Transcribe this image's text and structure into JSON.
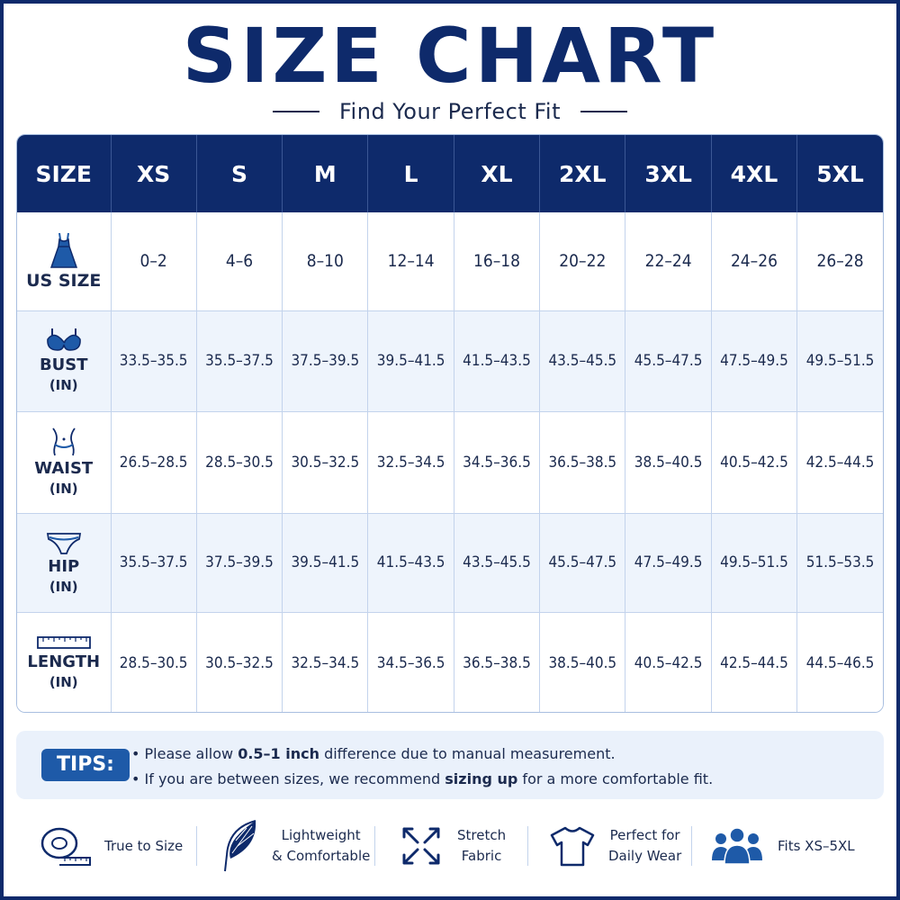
{
  "header": {
    "title": "SIZE CHART",
    "subtitle": "Find Your Perfect Fit"
  },
  "colors": {
    "navy": "#0e2a6b",
    "accent_blue": "#1e5aa8",
    "row_tint": "#eef4fc"
  },
  "table": {
    "corner_label": "SIZE",
    "sizes": [
      "XS",
      "S",
      "M",
      "L",
      "XL",
      "2XL",
      "3XL",
      "4XL",
      "5XL"
    ],
    "rows": [
      {
        "icon": "dress-icon",
        "label": "US SIZE",
        "unit": "",
        "values": [
          "0–2",
          "4–6",
          "8–10",
          "12–14",
          "16–18",
          "20–22",
          "22–24",
          "24–26",
          "26–28"
        ]
      },
      {
        "icon": "bra-icon",
        "label": "BUST",
        "unit": "(IN)",
        "values": [
          "33.5–35.5",
          "35.5–37.5",
          "37.5–39.5",
          "39.5–41.5",
          "41.5–43.5",
          "43.5–45.5",
          "45.5–47.5",
          "47.5–49.5",
          "49.5–51.5"
        ]
      },
      {
        "icon": "waist-icon",
        "label": "WAIST",
        "unit": "(IN)",
        "values": [
          "26.5–28.5",
          "28.5–30.5",
          "30.5–32.5",
          "32.5–34.5",
          "34.5–36.5",
          "36.5–38.5",
          "38.5–40.5",
          "40.5–42.5",
          "42.5–44.5"
        ]
      },
      {
        "icon": "hip-icon",
        "label": "HIP",
        "unit": "(IN)",
        "values": [
          "35.5–37.5",
          "37.5–39.5",
          "39.5–41.5",
          "41.5–43.5",
          "43.5–45.5",
          "45.5–47.5",
          "47.5–49.5",
          "49.5–51.5",
          "51.5–53.5"
        ]
      },
      {
        "icon": "ruler-icon",
        "label": "LENGTH",
        "unit": "(IN)",
        "values": [
          "28.5–30.5",
          "30.5–32.5",
          "32.5–34.5",
          "34.5–36.5",
          "36.5–38.5",
          "38.5–40.5",
          "40.5–42.5",
          "42.5–44.5",
          "44.5–46.5"
        ]
      }
    ]
  },
  "tips": {
    "badge": "TIPS:",
    "line1": {
      "before": "• Please allow ",
      "bold": "0.5–1 inch",
      "after": " difference due to manual measurement."
    },
    "line2": {
      "before": "• If you are between sizes, we recommend ",
      "bold": "sizing up",
      "after": " for a more comfortable fit."
    }
  },
  "features": [
    {
      "icon": "measuring-tape-icon",
      "line1": "True to Size",
      "line2": ""
    },
    {
      "icon": "feather-icon",
      "line1": "Lightweight",
      "line2": "& Comfortable"
    },
    {
      "icon": "stretch-arrows-icon",
      "line1": "Stretch",
      "line2": "Fabric"
    },
    {
      "icon": "tshirt-icon",
      "line1": "Perfect for",
      "line2": "Daily Wear"
    },
    {
      "icon": "people-icon",
      "line1": "Fits XS–5XL",
      "line2": ""
    }
  ]
}
